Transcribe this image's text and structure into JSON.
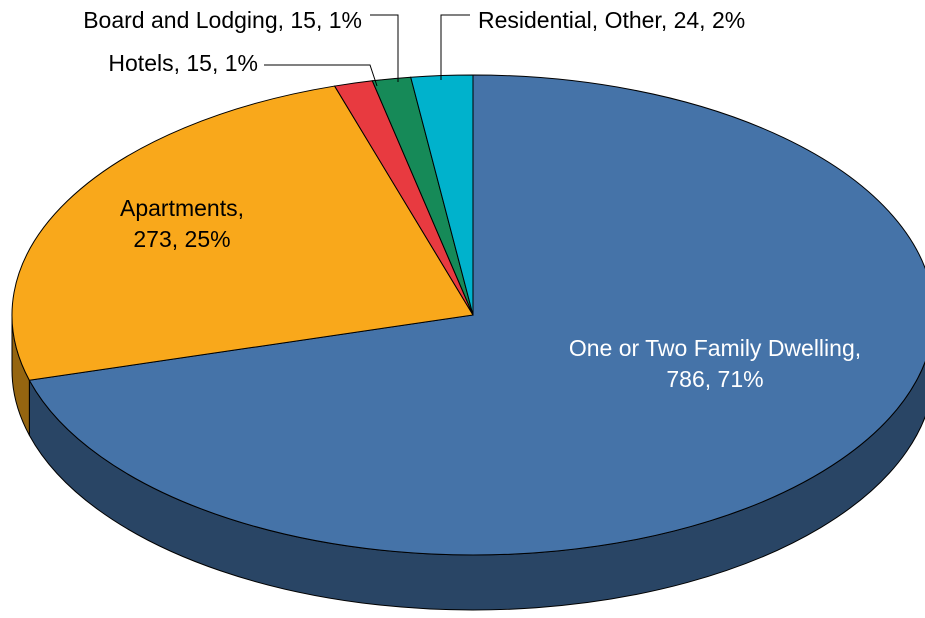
{
  "chart_data": {
    "type": "pie3d",
    "values": [
      786,
      273,
      15,
      15,
      24
    ],
    "value_labels": [
      [
        "One or Two Family Dwelling,",
        "786, 71%"
      ],
      [
        "Apartments,",
        "273, 25%"
      ],
      [
        "Hotels, 15, 1%"
      ],
      [
        "Board and Lodging, 15, 1%"
      ],
      [
        "Residential, Other, 24, 2%"
      ]
    ],
    "colors": [
      "#4573a8",
      "#f9a81b",
      "#e83a40",
      "#168a58",
      "#00b2cc"
    ]
  }
}
